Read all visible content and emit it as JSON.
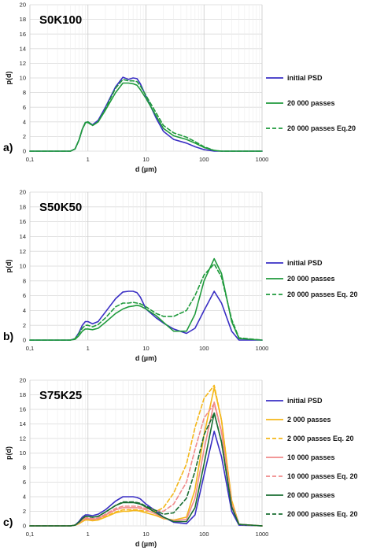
{
  "chart_data": [
    {
      "type": "line",
      "panel_label": "a)",
      "title": "S0K100",
      "xlabel": "d (µm)",
      "ylabel": "p(d)",
      "xscale": "log",
      "xlim": [
        0.1,
        1000
      ],
      "ylim": [
        0,
        20
      ],
      "yticks": [
        0,
        2,
        4,
        6,
        8,
        10,
        12,
        14,
        16,
        18,
        20
      ],
      "xticks": [
        0.1,
        1,
        10,
        100,
        1000
      ],
      "xtick_labels": [
        "0,1",
        "1",
        "10",
        "100",
        "1000"
      ],
      "grid": true,
      "legend_position": "right",
      "series": [
        {
          "name": "initial PSD",
          "color": "#3a2fc4",
          "dash": "solid",
          "x": [
            0.1,
            0.5,
            0.6,
            0.7,
            0.8,
            0.9,
            1.0,
            1.2,
            1.5,
            2,
            3,
            4,
            5,
            6,
            7,
            8,
            10,
            15,
            20,
            30,
            50,
            70,
            100,
            150,
            200,
            1000
          ],
          "y": [
            0,
            0,
            0.3,
            1.5,
            3.0,
            3.9,
            4.0,
            3.6,
            4.2,
            6.0,
            8.8,
            10.1,
            9.8,
            10.0,
            9.9,
            9.2,
            7.5,
            4.5,
            2.7,
            1.6,
            1.1,
            0.6,
            0.2,
            0,
            0,
            0
          ]
        },
        {
          "name": "20 000 passes",
          "color": "#1f9a3c",
          "dash": "solid",
          "x": [
            0.1,
            0.5,
            0.6,
            0.7,
            0.8,
            0.9,
            1.0,
            1.2,
            1.5,
            2,
            3,
            4,
            5,
            6,
            7,
            8,
            10,
            15,
            20,
            30,
            50,
            70,
            100,
            150,
            200,
            1000
          ],
          "y": [
            0,
            0,
            0.3,
            1.5,
            3.0,
            3.9,
            4.0,
            3.5,
            4.0,
            5.6,
            8.0,
            9.3,
            9.3,
            9.2,
            9.0,
            8.4,
            7.2,
            4.8,
            3.1,
            2.1,
            1.6,
            1.1,
            0.5,
            0.1,
            0,
            0
          ]
        },
        {
          "name": "20 000 passes Eq.20",
          "color": "#1f9a3c",
          "dash": "dashed",
          "x": [
            0.1,
            0.5,
            0.6,
            0.7,
            0.8,
            0.9,
            1.0,
            1.2,
            1.5,
            2,
            3,
            4,
            5,
            6,
            7,
            8,
            10,
            15,
            20,
            30,
            50,
            70,
            100,
            150,
            200,
            1000
          ],
          "y": [
            0,
            0,
            0.3,
            1.5,
            3.0,
            3.8,
            3.9,
            3.5,
            4.0,
            5.8,
            8.6,
            9.8,
            9.6,
            9.6,
            9.5,
            8.9,
            7.6,
            5.2,
            3.5,
            2.5,
            1.9,
            1.3,
            0.6,
            0.1,
            0,
            0
          ]
        }
      ]
    },
    {
      "type": "line",
      "panel_label": "b)",
      "title": "S50K50",
      "xlabel": "d (µm)",
      "ylabel": "p(d)",
      "xscale": "log",
      "xlim": [
        0.1,
        1000
      ],
      "ylim": [
        0,
        20
      ],
      "yticks": [
        0,
        2,
        4,
        6,
        8,
        10,
        12,
        14,
        16,
        18,
        20
      ],
      "xticks": [
        0.1,
        1,
        10,
        100,
        1000
      ],
      "xtick_labels": [
        "0,1",
        "1",
        "10",
        "100",
        "1000"
      ],
      "grid": true,
      "legend_position": "right",
      "series": [
        {
          "name": "initial PSD",
          "color": "#3a2fc4",
          "dash": "solid",
          "x": [
            0.1,
            0.5,
            0.6,
            0.7,
            0.8,
            0.9,
            1.0,
            1.2,
            1.5,
            2,
            3,
            4,
            5,
            6,
            7,
            8,
            10,
            15,
            20,
            30,
            50,
            70,
            100,
            150,
            200,
            300,
            400,
            1000
          ],
          "y": [
            0,
            0,
            0.2,
            1.0,
            2.0,
            2.5,
            2.5,
            2.2,
            2.5,
            3.8,
            5.6,
            6.5,
            6.6,
            6.6,
            6.4,
            5.8,
            4.2,
            3.0,
            2.3,
            1.5,
            0.9,
            1.6,
            4.0,
            6.6,
            5.0,
            1.2,
            0,
            0
          ]
        },
        {
          "name": "20 000 passes",
          "color": "#1f9a3c",
          "dash": "solid",
          "x": [
            0.1,
            0.5,
            0.6,
            0.7,
            0.8,
            0.9,
            1.0,
            1.2,
            1.5,
            2,
            3,
            4,
            5,
            6,
            7,
            8,
            10,
            15,
            20,
            30,
            50,
            70,
            100,
            150,
            200,
            300,
            400,
            1000
          ],
          "y": [
            0,
            0,
            0.1,
            0.6,
            1.2,
            1.5,
            1.5,
            1.4,
            1.6,
            2.4,
            3.6,
            4.2,
            4.5,
            4.6,
            4.7,
            4.6,
            4.2,
            3.3,
            2.4,
            1.2,
            1.2,
            3.5,
            8.0,
            11.0,
            9.0,
            2.5,
            0.2,
            0
          ]
        },
        {
          "name": "20 000 passes Eq. 20",
          "color": "#1f9a3c",
          "dash": "dashed",
          "x": [
            0.1,
            0.5,
            0.6,
            0.7,
            0.8,
            0.9,
            1.0,
            1.2,
            1.5,
            2,
            3,
            4,
            5,
            6,
            7,
            8,
            10,
            15,
            20,
            30,
            50,
            70,
            100,
            150,
            200,
            300,
            400,
            1000
          ],
          "y": [
            0,
            0,
            0.2,
            0.9,
            1.6,
            2.0,
            2.0,
            1.8,
            2.1,
            3.0,
            4.5,
            5.0,
            5.0,
            5.1,
            5.0,
            4.9,
            4.5,
            3.6,
            3.2,
            3.2,
            4.0,
            6.0,
            8.8,
            10.3,
            8.5,
            2.8,
            0.3,
            0
          ]
        }
      ]
    },
    {
      "type": "line",
      "panel_label": "c)",
      "title": "S75K25",
      "xlabel": "d (µm)",
      "ylabel": "p(d)",
      "xscale": "log",
      "xlim": [
        0.1,
        1000
      ],
      "ylim": [
        0,
        20
      ],
      "yticks": [
        0,
        2,
        4,
        6,
        8,
        10,
        12,
        14,
        16,
        18,
        20
      ],
      "xticks": [
        0.1,
        1,
        10,
        100,
        1000
      ],
      "xtick_labels": [
        "0,1",
        "1",
        "10",
        "100",
        "1000"
      ],
      "grid": true,
      "legend_position": "right",
      "series": [
        {
          "name": "initial PSD",
          "color": "#3a2fc4",
          "dash": "solid",
          "x": [
            0.1,
            0.5,
            0.6,
            0.7,
            0.8,
            0.9,
            1.0,
            1.2,
            1.5,
            2,
            3,
            4,
            5,
            6,
            7,
            8,
            10,
            15,
            20,
            30,
            50,
            70,
            100,
            150,
            200,
            300,
            400,
            1000
          ],
          "y": [
            0,
            0,
            0.1,
            0.6,
            1.2,
            1.5,
            1.5,
            1.4,
            1.6,
            2.2,
            3.4,
            4.0,
            4.0,
            4.0,
            3.9,
            3.7,
            3.0,
            2.0,
            1.2,
            0.5,
            0.3,
            1.5,
            7.0,
            13.0,
            9.5,
            2.0,
            0.1,
            0
          ]
        },
        {
          "name": "2 000 passes",
          "color": "#f4b71a",
          "dash": "solid",
          "x": [
            0.1,
            0.5,
            0.6,
            0.7,
            0.8,
            0.9,
            1.0,
            1.2,
            1.5,
            2,
            3,
            4,
            5,
            6,
            7,
            8,
            10,
            15,
            20,
            30,
            50,
            70,
            100,
            150,
            200,
            300,
            400,
            1000
          ],
          "y": [
            0,
            0,
            0.1,
            0.3,
            0.6,
            0.8,
            0.8,
            0.7,
            0.8,
            1.2,
            1.8,
            2.0,
            2.0,
            2.1,
            2.1,
            2.0,
            1.8,
            1.4,
            1.0,
            0.8,
            1.2,
            5.0,
            12.5,
            19.0,
            14.5,
            3.5,
            0.2,
            0
          ]
        },
        {
          "name": "2 000 passes Eq. 20",
          "color": "#f4b71a",
          "dash": "dashed",
          "x": [
            0.1,
            0.5,
            0.6,
            0.7,
            0.8,
            0.9,
            1.0,
            1.2,
            1.5,
            2,
            3,
            4,
            5,
            6,
            7,
            8,
            10,
            15,
            20,
            30,
            50,
            70,
            100,
            150,
            200,
            300,
            400,
            1000
          ],
          "y": [
            0,
            0,
            0.1,
            0.3,
            0.6,
            0.9,
            0.9,
            0.8,
            0.9,
            1.3,
            1.9,
            2.2,
            2.2,
            2.2,
            2.2,
            2.1,
            2.0,
            2.0,
            2.5,
            4.5,
            8.5,
            13.5,
            17.5,
            19.3,
            14.5,
            3.5,
            0.2,
            0
          ]
        },
        {
          "name": "10 000 passes",
          "color": "#f08a8a",
          "dash": "solid",
          "x": [
            0.1,
            0.5,
            0.6,
            0.7,
            0.8,
            0.9,
            1.0,
            1.2,
            1.5,
            2,
            3,
            4,
            5,
            6,
            7,
            8,
            10,
            15,
            20,
            30,
            50,
            70,
            100,
            150,
            200,
            300,
            400,
            1000
          ],
          "y": [
            0,
            0,
            0.1,
            0.4,
            0.8,
            1.0,
            1.0,
            0.9,
            1.0,
            1.5,
            2.2,
            2.5,
            2.5,
            2.5,
            2.5,
            2.4,
            2.2,
            1.6,
            1.1,
            0.7,
            0.9,
            3.8,
            10.5,
            17.0,
            13.0,
            3.0,
            0.2,
            0
          ]
        },
        {
          "name": "10 000 passes Eq. 20",
          "color": "#f08a8a",
          "dash": "dashed",
          "x": [
            0.1,
            0.5,
            0.6,
            0.7,
            0.8,
            0.9,
            1.0,
            1.2,
            1.5,
            2,
            3,
            4,
            5,
            6,
            7,
            8,
            10,
            15,
            20,
            30,
            50,
            70,
            100,
            150,
            200,
            300,
            400,
            1000
          ],
          "y": [
            0,
            0,
            0.1,
            0.4,
            0.9,
            1.1,
            1.1,
            1.0,
            1.1,
            1.6,
            2.4,
            2.7,
            2.7,
            2.7,
            2.7,
            2.6,
            2.4,
            2.1,
            2.0,
            3.0,
            6.0,
            10.5,
            14.8,
            16.8,
            12.8,
            3.0,
            0.2,
            0
          ]
        },
        {
          "name": "20 000 passes",
          "color": "#1a6e32",
          "dash": "solid",
          "x": [
            0.1,
            0.5,
            0.6,
            0.7,
            0.8,
            0.9,
            1.0,
            1.2,
            1.5,
            2,
            3,
            4,
            5,
            6,
            7,
            8,
            10,
            15,
            20,
            30,
            50,
            70,
            100,
            150,
            200,
            300,
            400,
            1000
          ],
          "y": [
            0,
            0,
            0.1,
            0.5,
            1.0,
            1.3,
            1.3,
            1.2,
            1.3,
            1.9,
            2.8,
            3.2,
            3.2,
            3.2,
            3.1,
            3.0,
            2.6,
            1.8,
            1.2,
            0.6,
            0.6,
            2.5,
            8.5,
            15.5,
            11.5,
            2.6,
            0.2,
            0
          ]
        },
        {
          "name": "20 000 passes Eq. 20",
          "color": "#1a6e32",
          "dash": "dashed",
          "x": [
            0.1,
            0.5,
            0.6,
            0.7,
            0.8,
            0.9,
            1.0,
            1.2,
            1.5,
            2,
            3,
            4,
            5,
            6,
            7,
            8,
            10,
            15,
            20,
            30,
            50,
            70,
            100,
            150,
            200,
            300,
            400,
            1000
          ],
          "y": [
            0,
            0,
            0.1,
            0.5,
            1.0,
            1.3,
            1.3,
            1.2,
            1.3,
            1.9,
            2.8,
            3.3,
            3.3,
            3.3,
            3.2,
            3.1,
            2.7,
            2.1,
            1.6,
            1.8,
            3.8,
            7.5,
            12.5,
            15.5,
            11.5,
            2.6,
            0.2,
            0
          ]
        }
      ]
    }
  ]
}
